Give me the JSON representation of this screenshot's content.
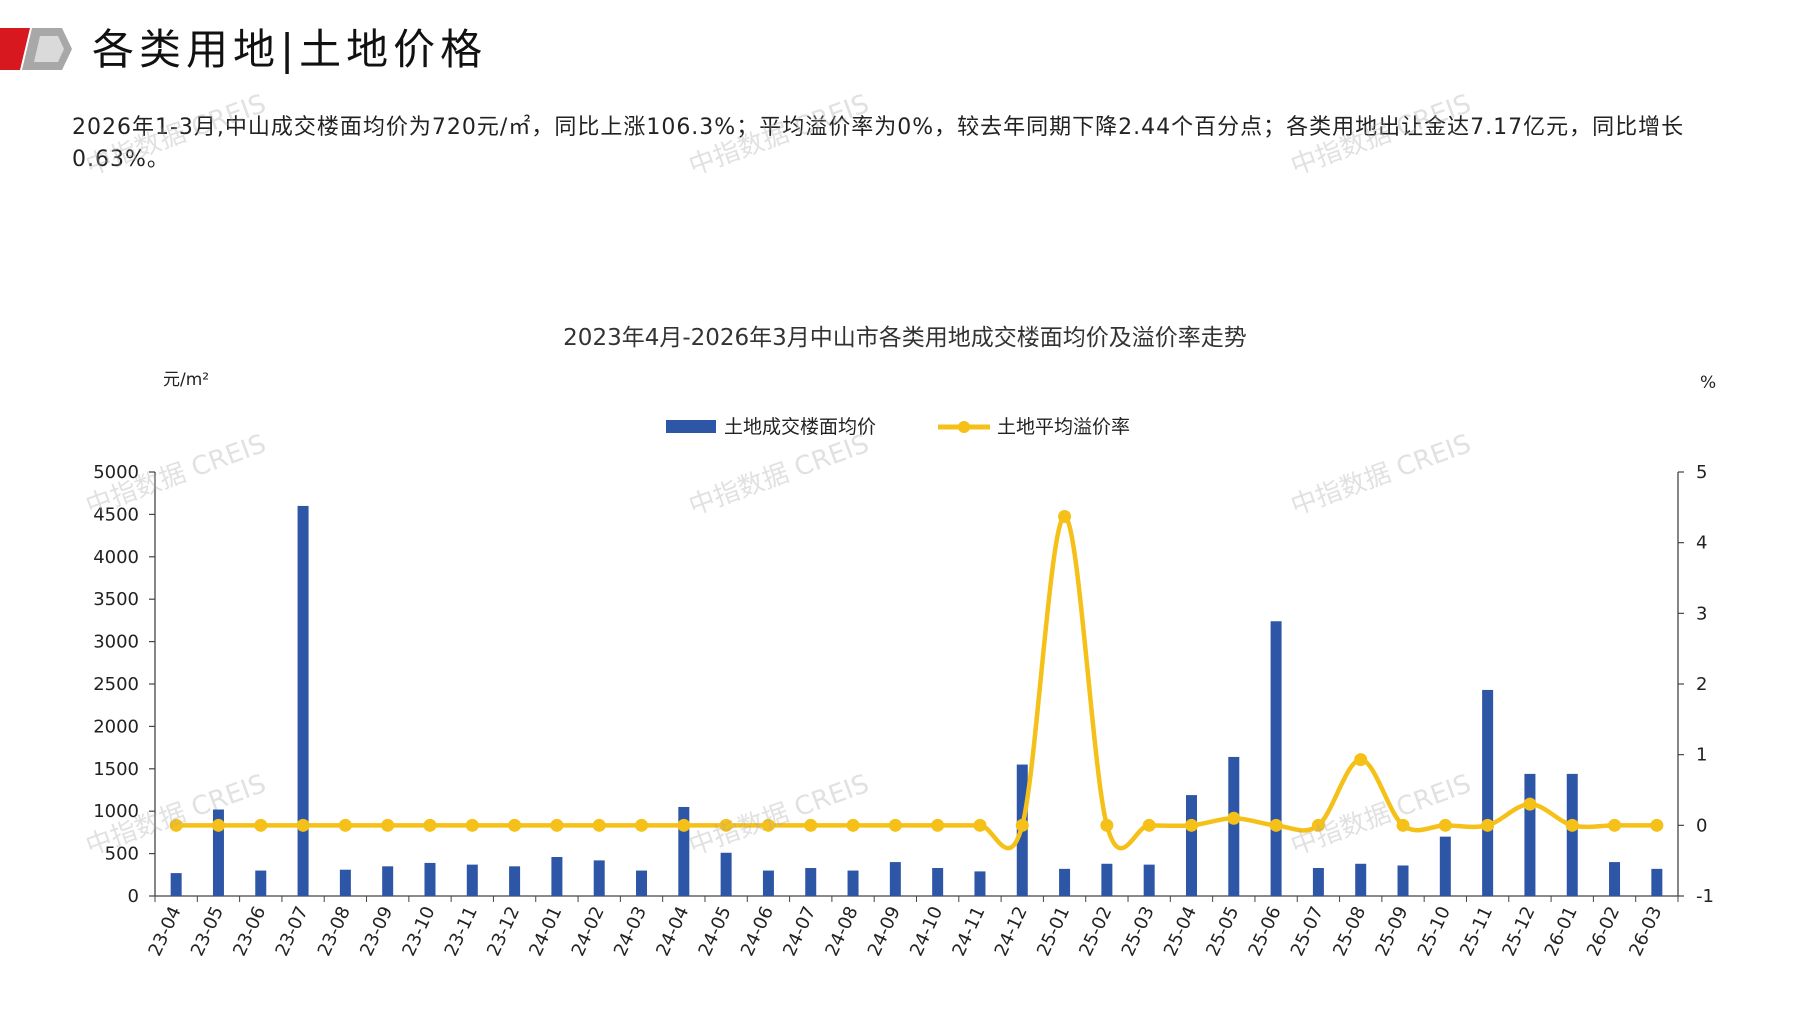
{
  "header": {
    "title": "各类用地|土地价格"
  },
  "summary": {
    "text": "2026年1-3月,中山成交楼面均价为720元/㎡，同比上涨106.3%；平均溢价率为0%，较去年同期下降2.44个百分点；各类用地出让金达7.17亿元，同比增长0.63%。"
  },
  "watermark": {
    "text": "中指数据 CREIS"
  },
  "colors": {
    "bar": "#2E56A6",
    "line": "#F5C018",
    "logo_red": "#D7191F",
    "logo_grey": "#9B9B9B"
  },
  "chart_data": {
    "type": "bar",
    "title": "2023年4月-2026年3月中山市各类用地成交楼面均价及溢价率走势",
    "ylabel": "元/m²",
    "ylabel_right": "%",
    "ylim": [
      0,
      5000
    ],
    "ylim_right": [
      -1,
      5
    ],
    "yticks": [
      "0",
      "500",
      "1000",
      "1500",
      "2000",
      "2500",
      "3000",
      "3500",
      "4000",
      "4500",
      "5000"
    ],
    "yticks_right": [
      "-1",
      "0",
      "1",
      "2",
      "3",
      "4",
      "5"
    ],
    "legend_position": "top-center",
    "grid": false,
    "categories": [
      "23-04",
      "23-05",
      "23-06",
      "23-07",
      "23-08",
      "23-09",
      "23-10",
      "23-11",
      "23-12",
      "24-01",
      "24-02",
      "24-03",
      "24-04",
      "24-05",
      "24-06",
      "24-07",
      "24-08",
      "24-09",
      "24-10",
      "24-11",
      "24-12",
      "25-01",
      "25-02",
      "25-03",
      "25-04",
      "25-05",
      "25-06",
      "25-07",
      "25-08",
      "25-09",
      "25-10",
      "25-11",
      "25-12",
      "26-01",
      "26-02",
      "26-03"
    ],
    "series": [
      {
        "name": "土地成交楼面均价",
        "type": "bar",
        "axis": "left",
        "values": [
          270,
          1020,
          300,
          4600,
          310,
          350,
          390,
          370,
          350,
          460,
          420,
          300,
          1050,
          510,
          300,
          330,
          300,
          400,
          330,
          290,
          1550,
          320,
          380,
          370,
          1190,
          1640,
          3240,
          330,
          380,
          360,
          700,
          2430,
          1440,
          1440,
          400,
          320
        ]
      },
      {
        "name": "土地平均溢价率",
        "type": "line",
        "axis": "right",
        "values": [
          0,
          0,
          0,
          0,
          0,
          0,
          0,
          0,
          0,
          0,
          0,
          0,
          0,
          0,
          0,
          0,
          0,
          0,
          0,
          0,
          0,
          4.37,
          0,
          0,
          0,
          0.1,
          0,
          0,
          0.93,
          0,
          0,
          0,
          0.3,
          0,
          0,
          0
        ]
      }
    ]
  }
}
